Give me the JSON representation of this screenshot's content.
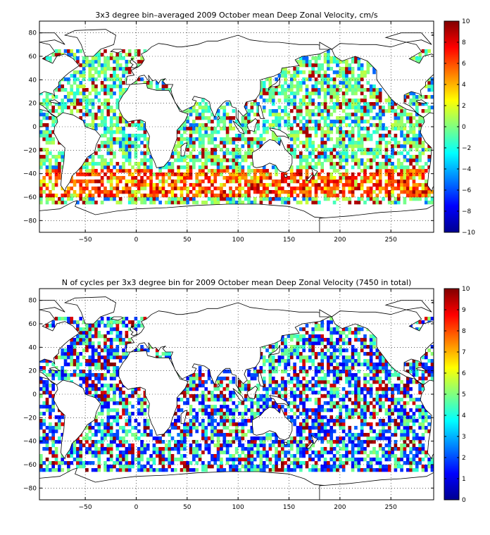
{
  "chart_data": [
    {
      "type": "heatmap",
      "title": "3x3 degree bin–averaged 2009 October mean Deep Zonal Velocity, cm/s",
      "xlabel": "",
      "ylabel": "",
      "xlim": [
        -95,
        292
      ],
      "ylim": [
        -90,
        90
      ],
      "xticks": [
        -50,
        0,
        50,
        100,
        150,
        200,
        250
      ],
      "yticks": [
        -80,
        -60,
        -40,
        -20,
        0,
        20,
        40,
        60,
        80
      ],
      "grid": true,
      "bin_size_deg": 3,
      "colormap": "jet",
      "colorbar": {
        "clim": [
          -10,
          10
        ],
        "ticks": [
          -10,
          -8,
          -6,
          -4,
          -2,
          0,
          2,
          4,
          6,
          8,
          10
        ]
      }
    },
    {
      "type": "heatmap",
      "title": "N of cycles per 3x3 degree bin for 2009 October mean Deep Zonal Velocity (7450 in total)",
      "xlabel": "",
      "ylabel": "",
      "xlim": [
        -95,
        292
      ],
      "ylim": [
        -90,
        90
      ],
      "xticks": [
        -50,
        0,
        50,
        100,
        150,
        200,
        250
      ],
      "yticks": [
        -80,
        -60,
        -40,
        -20,
        0,
        20,
        40,
        60,
        80
      ],
      "grid": true,
      "bin_size_deg": 3,
      "colormap": "jet",
      "colorbar": {
        "clim": [
          0,
          10
        ],
        "ticks": [
          0,
          1,
          2,
          3,
          4,
          5,
          6,
          7,
          8,
          9,
          10
        ]
      }
    }
  ],
  "colors": {
    "jet": [
      "#00008f",
      "#0000ff",
      "#0080ff",
      "#00ffff",
      "#80ff80",
      "#ffff00",
      "#ff8000",
      "#ff0000",
      "#800000"
    ],
    "axis": "#000000",
    "grid": "#000000",
    "background": "#ffffff"
  }
}
